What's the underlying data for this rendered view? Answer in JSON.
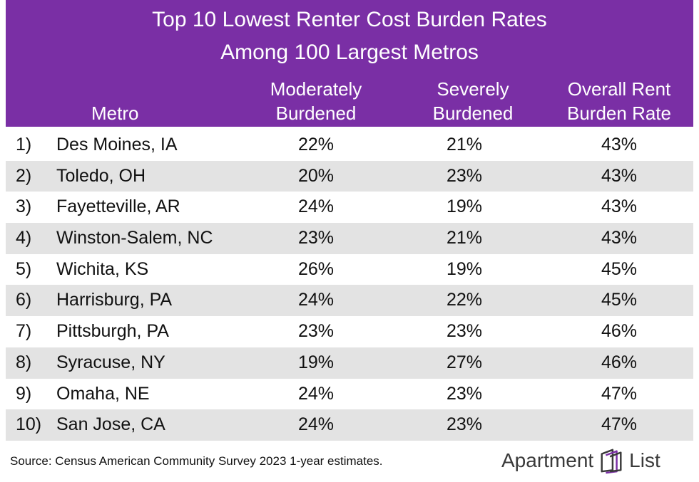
{
  "header": {
    "title_line1": "Top 10 Lowest Renter Cost Burden Rates",
    "title_line2": "Among 100 Largest Metros",
    "col_metro": "Metro",
    "col_moderately_1": "Moderately",
    "col_moderately_2": "Burdened",
    "col_severely_1": "Severely",
    "col_severely_2": "Burdened",
    "col_overall_1": "Overall Rent",
    "col_overall_2": "Burden Rate"
  },
  "chart_data": {
    "type": "table",
    "title": "Top 10 Lowest Renter Cost Burden Rates Among 100 Largest Metros",
    "columns": [
      "Metro",
      "Moderately Burdened",
      "Severely Burdened",
      "Overall Rent Burden Rate"
    ],
    "rows": [
      {
        "rank": "1)",
        "metro": "Des Moines, IA",
        "moderately": "22%",
        "severely": "21%",
        "overall": "43%"
      },
      {
        "rank": "2)",
        "metro": "Toledo, OH",
        "moderately": "20%",
        "severely": "23%",
        "overall": "43%"
      },
      {
        "rank": "3)",
        "metro": "Fayetteville, AR",
        "moderately": "24%",
        "severely": "19%",
        "overall": "43%"
      },
      {
        "rank": "4)",
        "metro": "Winston-Salem, NC",
        "moderately": "23%",
        "severely": "21%",
        "overall": "43%"
      },
      {
        "rank": "5)",
        "metro": "Wichita, KS",
        "moderately": "26%",
        "severely": "19%",
        "overall": "45%"
      },
      {
        "rank": "6)",
        "metro": "Harrisburg, PA",
        "moderately": "24%",
        "severely": "22%",
        "overall": "45%"
      },
      {
        "rank": "7)",
        "metro": "Pittsburgh, PA",
        "moderately": "23%",
        "severely": "23%",
        "overall": "46%"
      },
      {
        "rank": "8)",
        "metro": "Syracuse, NY",
        "moderately": "19%",
        "severely": "27%",
        "overall": "46%"
      },
      {
        "rank": "9)",
        "metro": "Omaha, NE",
        "moderately": "24%",
        "severely": "23%",
        "overall": "47%"
      },
      {
        "rank": "10)",
        "metro": "San Jose, CA",
        "moderately": "24%",
        "severely": "23%",
        "overall": "47%"
      }
    ]
  },
  "footer": {
    "source": "Source: Census American Community Survey 2023 1-year estimates.",
    "brand_part1": "Apartment",
    "brand_part2": "List",
    "brand_icon": "apartment-list-logo-icon"
  },
  "colors": {
    "header_bg": "#7a2fa5",
    "stripe": "#e3e3e3",
    "brand_gray": "#3a3a3a",
    "logo_accent": "#7a2fa5"
  }
}
